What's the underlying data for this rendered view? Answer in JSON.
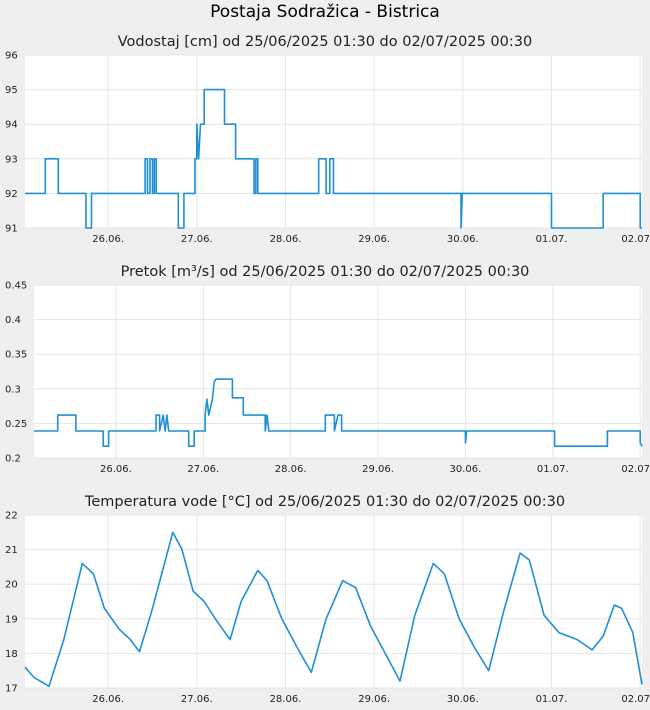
{
  "page": {
    "title": "Postaja Sodražica - Bistrica"
  },
  "chart_data": [
    {
      "type": "line",
      "title": "Vodostaj [cm] od 25/06/2025 01:30 do 02/07/2025 00:30",
      "xlabel": "",
      "ylabel": "",
      "ylim": [
        91,
        96
      ],
      "yticks": [
        "91",
        "92",
        "93",
        "94",
        "95",
        "96"
      ],
      "xlim": [
        "25/06/2025 01:30",
        "02/07/2025 00:30"
      ],
      "xticks": [
        "26.06.",
        "27.06.",
        "28.06.",
        "29.06.",
        "30.06.",
        "01.07.",
        "02.07"
      ],
      "grid": true,
      "series": [
        {
          "color": "#1f8fd6",
          "points": [
            [
              "25.06. 01:30",
              92
            ],
            [
              "25.06. 07:00",
              92
            ],
            [
              "25.06. 07:00",
              93
            ],
            [
              "25.06. 10:30",
              93
            ],
            [
              "25.06. 10:30",
              92
            ],
            [
              "25.06. 18:00",
              92
            ],
            [
              "25.06. 18:00",
              91
            ],
            [
              "25.06. 19:30",
              91
            ],
            [
              "25.06. 19:30",
              92
            ],
            [
              "26.06. 10:00",
              92
            ],
            [
              "26.06. 10:00",
              93
            ],
            [
              "26.06. 10:40",
              93
            ],
            [
              "26.06. 10:40",
              92
            ],
            [
              "26.06. 11:20",
              92
            ],
            [
              "26.06. 11:20",
              93
            ],
            [
              "26.06. 12:00",
              93
            ],
            [
              "26.06. 12:00",
              92
            ],
            [
              "26.06. 12:30",
              92
            ],
            [
              "26.06. 12:30",
              93
            ],
            [
              "26.06. 13:00",
              93
            ],
            [
              "26.06. 13:00",
              92
            ],
            [
              "26.06. 19:00",
              92
            ],
            [
              "26.06. 19:00",
              91
            ],
            [
              "26.06. 20:30",
              91
            ],
            [
              "26.06. 20:30",
              92
            ],
            [
              "26.06. 23:30",
              92
            ],
            [
              "26.06. 23:30",
              93
            ],
            [
              "27.06. 00:00",
              93
            ],
            [
              "27.06. 00:00",
              94
            ],
            [
              "27.06. 00:30",
              93
            ],
            [
              "27.06. 01:00",
              94
            ],
            [
              "27.06. 02:00",
              94
            ],
            [
              "27.06. 02:00",
              95
            ],
            [
              "27.06. 07:30",
              95
            ],
            [
              "27.06. 07:30",
              94
            ],
            [
              "27.06. 10:30",
              94
            ],
            [
              "27.06. 10:30",
              93
            ],
            [
              "27.06. 15:30",
              93
            ],
            [
              "27.06. 15:30",
              92
            ],
            [
              "27.06. 16:00",
              92
            ],
            [
              "27.06. 16:00",
              93
            ],
            [
              "27.06. 16:30",
              93
            ],
            [
              "27.06. 16:30",
              92
            ],
            [
              "28.06. 09:00",
              92
            ],
            [
              "28.06. 09:00",
              93
            ],
            [
              "28.06. 11:00",
              93
            ],
            [
              "28.06. 11:00",
              92
            ],
            [
              "28.06. 12:00",
              92
            ],
            [
              "28.06. 12:00",
              93
            ],
            [
              "28.06. 13:00",
              93
            ],
            [
              "28.06. 13:00",
              92
            ],
            [
              "29.06. 23:30",
              92
            ],
            [
              "29.06. 23:30",
              91
            ],
            [
              "29.06. 23:50",
              92
            ],
            [
              "01.07. 00:00",
              92
            ],
            [
              "01.07. 00:00",
              91
            ],
            [
              "01.07. 14:00",
              91
            ],
            [
              "01.07. 14:00",
              92
            ],
            [
              "02.07. 00:00",
              92
            ],
            [
              "02.07. 00:00",
              91
            ],
            [
              "02.07. 00:30",
              91
            ]
          ]
        }
      ]
    },
    {
      "type": "line",
      "title": "Pretok [m³/s] od 25/06/2025 01:30 do 02/07/2025 00:30",
      "xlabel": "",
      "ylabel": "",
      "ylim": [
        0.2,
        0.45
      ],
      "yticks": [
        "0.2",
        "0.25",
        "0.3",
        "0.35",
        "0.4",
        "0.45"
      ],
      "xlim": [
        "25/06/2025 01:30",
        "02/07/2025 00:30"
      ],
      "xticks": [
        "26.06.",
        "27.06.",
        "28.06.",
        "29.06.",
        "30.06.",
        "01.07.",
        "02.07"
      ],
      "grid": true,
      "series": [
        {
          "color": "#1f8fd6",
          "points": [
            [
              "25.06. 01:30",
              0.239
            ],
            [
              "25.06. 08:00",
              0.239
            ],
            [
              "25.06. 08:00",
              0.262
            ],
            [
              "25.06. 13:00",
              0.262
            ],
            [
              "25.06. 13:00",
              0.239
            ],
            [
              "25.06. 20:30",
              0.239
            ],
            [
              "25.06. 20:30",
              0.217
            ],
            [
              "25.06. 22:00",
              0.217
            ],
            [
              "25.06. 22:00",
              0.239
            ],
            [
              "26.06. 11:00",
              0.239
            ],
            [
              "26.06. 11:00",
              0.262
            ],
            [
              "26.06. 12:00",
              0.262
            ],
            [
              "26.06. 12:00",
              0.239
            ],
            [
              "26.06. 13:00",
              0.262
            ],
            [
              "26.06. 13:30",
              0.239
            ],
            [
              "26.06. 14:00",
              0.262
            ],
            [
              "26.06. 14:30",
              0.239
            ],
            [
              "26.06. 20:00",
              0.239
            ],
            [
              "26.06. 20:00",
              0.217
            ],
            [
              "26.06. 21:30",
              0.217
            ],
            [
              "26.06. 21:30",
              0.239
            ],
            [
              "27.06. 00:30",
              0.239
            ],
            [
              "27.06. 00:30",
              0.262
            ],
            [
              "27.06. 01:00",
              0.285
            ],
            [
              "27.06. 01:30",
              0.262
            ],
            [
              "27.06. 02:30",
              0.285
            ],
            [
              "27.06. 03:00",
              0.31
            ],
            [
              "27.06. 03:30",
              0.314
            ],
            [
              "27.06. 08:00",
              0.314
            ],
            [
              "27.06. 08:00",
              0.287
            ],
            [
              "27.06. 11:00",
              0.287
            ],
            [
              "27.06. 11:00",
              0.262
            ],
            [
              "27.06. 17:00",
              0.262
            ],
            [
              "27.06. 17:00",
              0.239
            ],
            [
              "27.06. 17:30",
              0.262
            ],
            [
              "27.06. 18:00",
              0.239
            ],
            [
              "28.06. 09:30",
              0.239
            ],
            [
              "28.06. 09:30",
              0.262
            ],
            [
              "28.06. 12:00",
              0.262
            ],
            [
              "28.06. 12:00",
              0.239
            ],
            [
              "28.06. 13:00",
              0.262
            ],
            [
              "28.06. 14:00",
              0.262
            ],
            [
              "28.06. 14:00",
              0.239
            ],
            [
              "30.06. 00:00",
              0.239
            ],
            [
              "30.06. 00:00",
              0.222
            ],
            [
              "30.06. 00:20",
              0.239
            ],
            [
              "01.07. 00:30",
              0.239
            ],
            [
              "01.07. 00:30",
              0.217
            ],
            [
              "01.07. 15:00",
              0.217
            ],
            [
              "01.07. 15:00",
              0.239
            ],
            [
              "02.07. 00:00",
              0.239
            ],
            [
              "02.07. 00:00",
              0.222
            ],
            [
              "02.07. 00:30",
              0.217
            ]
          ]
        }
      ]
    },
    {
      "type": "line",
      "title": "Temperatura vode [°C] od 25/06/2025 01:30 do 02/07/2025 00:30",
      "xlabel": "",
      "ylabel": "",
      "ylim": [
        17,
        22
      ],
      "yticks": [
        "17",
        "18",
        "19",
        "20",
        "21",
        "22"
      ],
      "xlim": [
        "25/06/2025 01:30",
        "02/07/2025 00:30"
      ],
      "xticks": [
        "26.06.",
        "27.06.",
        "28.06.",
        "29.06.",
        "30.06.",
        "01.07.",
        "02.07"
      ],
      "grid": true,
      "series": [
        {
          "color": "#1f8fd6",
          "points": [
            [
              "25.06. 01:30",
              17.6
            ],
            [
              "25.06. 04:00",
              17.3
            ],
            [
              "25.06. 08:00",
              17.05
            ],
            [
              "25.06. 12:00",
              18.4
            ],
            [
              "25.06. 17:00",
              20.6
            ],
            [
              "25.06. 20:00",
              20.3
            ],
            [
              "25.06. 23:00",
              19.3
            ],
            [
              "26.06. 03:00",
              18.7
            ],
            [
              "26.06. 06:00",
              18.4
            ],
            [
              "26.06. 08:30",
              18.05
            ],
            [
              "26.06. 12:00",
              19.3
            ],
            [
              "26.06. 17:30",
              21.5
            ],
            [
              "26.06. 20:00",
              21.0
            ],
            [
              "26.06. 23:00",
              19.8
            ],
            [
              "27.06. 02:00",
              19.5
            ],
            [
              "27.06. 05:00",
              19.0
            ],
            [
              "27.06. 09:00",
              18.4
            ],
            [
              "27.06. 12:00",
              19.5
            ],
            [
              "27.06. 16:30",
              20.4
            ],
            [
              "27.06. 19:00",
              20.1
            ],
            [
              "27.06. 23:00",
              19.0
            ],
            [
              "28.06. 03:00",
              18.2
            ],
            [
              "28.06. 07:00",
              17.45
            ],
            [
              "28.06. 11:00",
              19.0
            ],
            [
              "28.06. 15:30",
              20.1
            ],
            [
              "28.06. 19:00",
              19.9
            ],
            [
              "28.06. 23:00",
              18.8
            ],
            [
              "29.06. 03:00",
              18.0
            ],
            [
              "29.06. 07:00",
              17.2
            ],
            [
              "29.06. 11:00",
              19.1
            ],
            [
              "29.06. 16:00",
              20.6
            ],
            [
              "29.06. 19:00",
              20.3
            ],
            [
              "29.06. 23:00",
              19.0
            ],
            [
              "30.06. 03:00",
              18.2
            ],
            [
              "30.06. 07:00",
              17.5
            ],
            [
              "30.06. 11:00",
              19.2
            ],
            [
              "30.06. 15:30",
              20.9
            ],
            [
              "30.06. 18:00",
              20.7
            ],
            [
              "30.06. 22:00",
              19.1
            ],
            [
              "01.07. 02:00",
              18.6
            ],
            [
              "01.07. 07:00",
              18.4
            ],
            [
              "01.07. 11:00",
              18.1
            ],
            [
              "01.07. 14:00",
              18.5
            ],
            [
              "01.07. 17:00",
              19.4
            ],
            [
              "01.07. 19:00",
              19.3
            ],
            [
              "01.07. 22:00",
              18.6
            ],
            [
              "02.07. 00:30",
              17.1
            ]
          ]
        }
      ]
    }
  ]
}
